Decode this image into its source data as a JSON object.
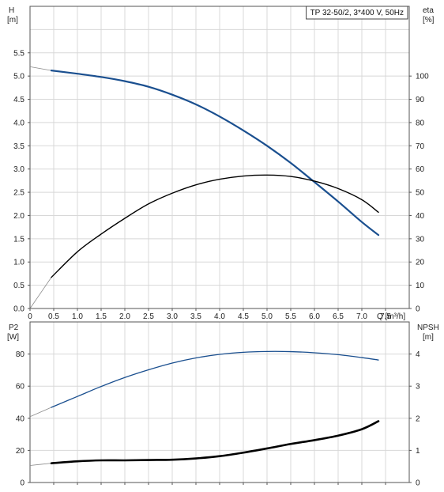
{
  "chart_data": [
    {
      "type": "line",
      "title": "TP 32-50/2, 3*400 V, 50Hz",
      "xlabel": "Q [m³/h]",
      "ylabel_left": [
        "H",
        "[m]"
      ],
      "ylabel_right": [
        "eta",
        "[%]"
      ],
      "xlim": [
        0,
        8
      ],
      "ylim_left": [
        0,
        6.5
      ],
      "ylim_right": [
        0,
        130
      ],
      "grid": true,
      "x_ticks": [
        "0",
        "0.5",
        "1.0",
        "1.5",
        "2.0",
        "2.5",
        "3.0",
        "3.5",
        "4.0",
        "4.5",
        "5.0",
        "5.5",
        "6.0",
        "6.5",
        "7.0",
        "7.5"
      ],
      "y_ticks_left": [
        "0.0",
        "0.5",
        "1.0",
        "1.5",
        "2.0",
        "2.5",
        "3.0",
        "3.5",
        "4.0",
        "4.5",
        "5.0",
        "5.5"
      ],
      "y_ticks_right": [
        "0",
        "10",
        "20",
        "30",
        "40",
        "50",
        "60",
        "70",
        "80",
        "90",
        "100"
      ],
      "series": [
        {
          "name": "H",
          "axis": "left",
          "color": "#1a4f8f",
          "extrapolated": {
            "x": [
              0,
              0.45
            ],
            "y": [
              5.2,
              5.12
            ]
          },
          "x": [
            0.45,
            1.0,
            1.5,
            2.0,
            2.5,
            3.0,
            3.5,
            4.0,
            4.5,
            5.0,
            5.5,
            6.0,
            6.5,
            7.0,
            7.35
          ],
          "y": [
            5.12,
            5.05,
            4.98,
            4.89,
            4.77,
            4.6,
            4.39,
            4.13,
            3.83,
            3.5,
            3.13,
            2.72,
            2.3,
            1.86,
            1.58
          ]
        },
        {
          "name": "eta",
          "axis": "right",
          "color": "#000000",
          "extrapolated": {
            "x": [
              0,
              0.45
            ],
            "y": [
              0,
              13.4
            ]
          },
          "x": [
            0.45,
            1.0,
            1.5,
            2.0,
            2.5,
            3.0,
            3.5,
            4.0,
            4.5,
            5.0,
            5.5,
            6.0,
            6.5,
            7.0,
            7.35
          ],
          "y": [
            13.4,
            24.4,
            32.0,
            38.8,
            45.0,
            49.6,
            53.2,
            55.6,
            57.0,
            57.4,
            56.8,
            54.8,
            51.6,
            46.8,
            41.4
          ]
        }
      ]
    },
    {
      "type": "line",
      "xlim": [
        0,
        8
      ],
      "ylabel_left": [
        "P2",
        "[W]"
      ],
      "ylabel_right": [
        "NPSH",
        "[m]"
      ],
      "ylim_left": [
        0,
        100
      ],
      "ylim_right": [
        0,
        5
      ],
      "grid": true,
      "y_ticks_left": [
        "0",
        "20",
        "40",
        "60",
        "80"
      ],
      "y_ticks_right": [
        "0",
        "1",
        "2",
        "3",
        "4"
      ],
      "series": [
        {
          "name": "P2",
          "axis": "left",
          "color": "#1a4f8f",
          "extrapolated": {
            "x": [
              0,
              0.45
            ],
            "y": [
              41.0,
              46.8
            ]
          },
          "x": [
            0.45,
            1.0,
            1.5,
            2.0,
            2.5,
            3.0,
            3.5,
            4.0,
            4.5,
            5.0,
            5.5,
            6.0,
            6.5,
            7.0,
            7.35
          ],
          "y": [
            46.8,
            53.6,
            59.8,
            65.4,
            70.2,
            74.4,
            77.6,
            79.8,
            81.1,
            81.6,
            81.5,
            80.8,
            79.6,
            77.8,
            76.3
          ]
        },
        {
          "name": "NPSH",
          "axis": "right",
          "color": "#000000",
          "extrapolated": {
            "x": [
              0,
              0.45
            ],
            "y": [
              0.53,
              0.6
            ]
          },
          "x": [
            0.45,
            1.0,
            1.5,
            2.0,
            2.5,
            3.0,
            3.5,
            4.0,
            4.5,
            5.0,
            5.5,
            6.0,
            6.5,
            7.0,
            7.35
          ],
          "y": [
            0.6,
            0.66,
            0.69,
            0.69,
            0.7,
            0.71,
            0.75,
            0.82,
            0.93,
            1.06,
            1.2,
            1.32,
            1.46,
            1.66,
            1.91
          ]
        }
      ]
    }
  ]
}
